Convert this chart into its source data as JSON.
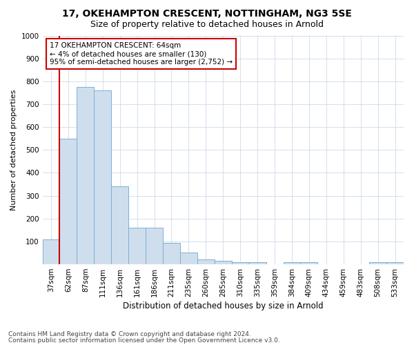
{
  "title1": "17, OKEHAMPTON CRESCENT, NOTTINGHAM, NG3 5SE",
  "title2": "Size of property relative to detached houses in Arnold",
  "xlabel": "Distribution of detached houses by size in Arnold",
  "ylabel": "Number of detached properties",
  "categories": [
    "37sqm",
    "62sqm",
    "87sqm",
    "111sqm",
    "136sqm",
    "161sqm",
    "186sqm",
    "211sqm",
    "235sqm",
    "260sqm",
    "285sqm",
    "310sqm",
    "335sqm",
    "359sqm",
    "384sqm",
    "409sqm",
    "434sqm",
    "459sqm",
    "483sqm",
    "508sqm",
    "533sqm"
  ],
  "values": [
    110,
    550,
    775,
    760,
    340,
    160,
    160,
    95,
    50,
    20,
    15,
    10,
    10,
    0,
    10,
    10,
    0,
    0,
    0,
    10,
    10
  ],
  "bar_color": "#cfdeed",
  "bar_edge_color": "#7bafd4",
  "annotation_text": "17 OKEHAMPTON CRESCENT: 64sqm\n← 4% of detached houses are smaller (130)\n95% of semi-detached houses are larger (2,752) →",
  "annotation_box_color": "#ffffff",
  "annotation_box_edge": "#cc0000",
  "red_line_index": 1,
  "ylim": [
    0,
    1000
  ],
  "yticks": [
    0,
    100,
    200,
    300,
    400,
    500,
    600,
    700,
    800,
    900,
    1000
  ],
  "footer1": "Contains HM Land Registry data © Crown copyright and database right 2024.",
  "footer2": "Contains public sector information licensed under the Open Government Licence v3.0.",
  "title1_fontsize": 10,
  "title2_fontsize": 9,
  "xlabel_fontsize": 8.5,
  "ylabel_fontsize": 8,
  "tick_fontsize": 7.5,
  "annotation_fontsize": 7.5,
  "footer_fontsize": 6.5,
  "background_color": "#ffffff",
  "grid_color": "#cdd9e8"
}
